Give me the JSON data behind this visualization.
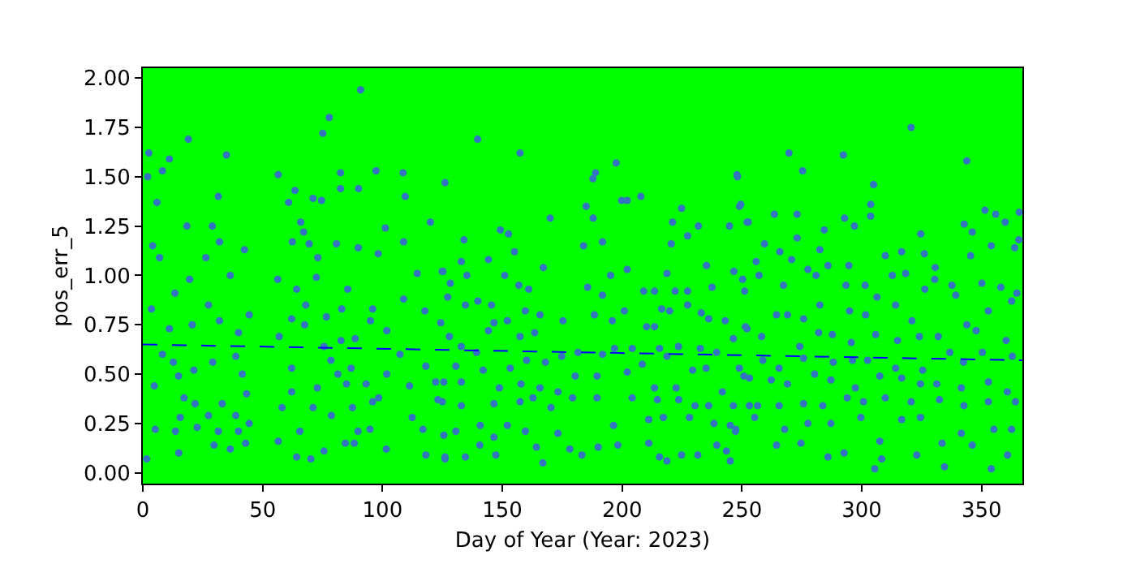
{
  "chart_data": {
    "type": "scatter",
    "xlabel": "Day of Year (Year: 2023)",
    "ylabel": "pos_err_5",
    "xlim": [
      0,
      367
    ],
    "ylim": [
      -0.055,
      2.05
    ],
    "xticks": [
      0,
      50,
      100,
      150,
      200,
      250,
      300,
      350
    ],
    "yticks": [
      {
        "value": 0,
        "label": "0.00"
      },
      {
        "value": 0.25,
        "label": "0.25"
      },
      {
        "value": 0.5,
        "label": "0.50"
      },
      {
        "value": 0.75,
        "label": "0.75"
      },
      {
        "value": 1,
        "label": "1.00"
      },
      {
        "value": 1.25,
        "label": "1.25"
      },
      {
        "value": 1.5,
        "label": "1.50"
      },
      {
        "value": 1.75,
        "label": "1.75"
      },
      {
        "value": 2,
        "label": "2.00"
      }
    ],
    "grid": false,
    "marker": "circle",
    "series": [
      {
        "color": "#3274c0",
        "x": [
          2.5,
          2.0,
          8.2,
          11.1,
          19.0,
          34.9,
          31.5,
          5.9,
          18.4,
          29,
          32,
          42.4,
          4.1,
          7,
          26.3,
          36.5,
          19.5,
          3.6,
          13.4,
          27.4,
          44.4,
          20.6,
          11.1,
          39.9,
          32,
          8.2,
          12.7,
          4.8,
          14.9,
          21.3,
          29.2,
          38.8,
          41.5,
          17.2,
          21.8,
          33.1,
          43.3,
          15.6,
          27.4,
          38.8,
          44.4,
          5.2,
          13.6,
          22.7,
          31.5,
          15,
          29.7,
          36.5,
          1.6,
          42.9,
          39.9,
          56.5,
          75.1,
          77.8,
          90.9,
          63.5,
          60.8,
          71,
          74.6,
          82.5,
          82.5,
          90,
          97.3,
          65.9,
          67.1,
          69.4,
          62.4,
          80.8,
          89.9,
          73,
          56.3,
          64.2,
          72.4,
          85.5,
          98.2,
          101.2,
          68,
          76.6,
          83,
          95.9,
          56.9,
          62.1,
          67.5,
          75.6,
          82.7,
          88.6,
          95,
          101.8,
          62.1,
          72.8,
          78.5,
          81.4,
          86.9,
          85,
          93.2,
          98.4,
          101.8,
          62.1,
          58.1,
          71,
          78.7,
          87.5,
          95.9,
          65.5,
          56.5,
          70.1,
          64.2,
          75.6,
          84.5,
          88.2,
          89.8,
          101.6,
          94.8,
          108.6,
          109.5,
          120,
          108.8,
          114.5,
          108.8,
          117.7,
          124.9,
          107.3,
          118.1,
          111.3,
          122.2,
          112.4,
          116.9,
          118.1,
          126.1,
          123.1,
          139.7,
          157.4,
          126.1,
          149.2,
          152.6,
          134,
          132.9,
          144.2,
          125.2,
          135.2,
          128.3,
          127.2,
          134.6,
          139.8,
          145.5,
          151,
          156.9,
          161,
          167.1,
          170,
          155.1,
          124.3,
          144.2,
          146.5,
          152.1,
          159.6,
          165.7,
          157.4,
          163.5,
          175.3,
          127.9,
          132.9,
          139.3,
          130.6,
          142,
          153.3,
          160.1,
          168,
          174.8,
          181.6,
          125.6,
          132.9,
          148.8,
          157.8,
          165.7,
          173.2,
          180.4,
          125,
          132.9,
          146.5,
          157.4,
          162.8,
          170.3,
          179.3,
          125.6,
          130.6,
          140.8,
          146.5,
          152.1,
          159.6,
          164.2,
          166.9,
          173.2,
          178.2,
          183.2,
          126.1,
          134.6,
          140.6,
          147.3,
          183.9,
          185.0,
          187.8,
          188.9,
          187.9,
          197.5,
          191.8,
          199.8,
          202.1,
          207.8,
          195.2,
          202.1,
          191.8,
          185.6,
          200.9,
          195.9,
          188.4,
          209,
          213.5,
          218.7,
          221,
          224.8,
          220.5,
          227.3,
          231.8,
          235.2,
          222.1,
          227.3,
          216.5,
          219.8,
          210.2,
          213.5,
          227.3,
          233,
          237.5,
          244.8,
          247.9,
          249.5,
          252.1,
          246.6,
          251.1,
          236.1,
          243,
          246.4,
          252.1,
          191.8,
          196.8,
          204.2,
          215.6,
          223.5,
          232.6,
          239.4,
          208.4,
          218.7,
          229.4,
          235,
          250.8,
          189.5,
          202.1,
          213.5,
          222.5,
          241.8,
          189.5,
          204.2,
          214.7,
          223.6,
          230.4,
          236.1,
          246.4,
          253.1,
          196.4,
          211.1,
          217.2,
          228.1,
          238.3,
          245.1,
          190,
          198.2,
          211.1,
          215.6,
          218.7,
          224.8,
          231.6,
          239.5,
          243.5,
          245.1,
          247.3,
          269.6,
          275.3,
          292.3,
          320.6,
          343.8,
          248.1,
          249,
          252.6,
          263.5,
          273,
          273,
          284.3,
          292.8,
          296.9,
          303.7,
          303.7,
          304.9,
          324.6,
          342.7,
          346.1,
          351.4,
          355.9,
          359.8,
          365.7,
          365.5,
          259.4,
          265.8,
          270.7,
          282.5,
          285.9,
          294.6,
          309.8,
          316.6,
          326.1,
          330.6,
          345.4,
          354,
          363.8,
          255.9,
          250.3,
          257.1,
          267.3,
          277.5,
          280.9,
          293.4,
          301.4,
          306.3,
          312.7,
          318.3,
          326.3,
          330.4,
          337.6,
          350.1,
          358,
          364.7,
          264.4,
          269,
          282.5,
          275.7,
          294.9,
          301.6,
          314.1,
          320.9,
          339.2,
          343.8,
          352.8,
          362.5,
          251.4,
          258.2,
          274.1,
          282,
          287.7,
          295.6,
          305.8,
          314.9,
          324,
          331.9,
          347.7,
          360.2,
          248.9,
          258.7,
          265.5,
          275.7,
          288.1,
          296.1,
          302.4,
          314.1,
          325.4,
          336.7,
          342.4,
          350.3,
          362.8,
          253.1,
          262.2,
          269,
          280.3,
          287.1,
          297.3,
          307.5,
          316.6,
          324.5,
          331.3,
          341.5,
          352.8,
          360.7,
          256.5,
          265.5,
          275.7,
          283.7,
          293.9,
          300.7,
          309.8,
          320.6,
          332.4,
          342.6,
          352.8,
          364.1,
          247.4,
          255.3,
          267.8,
          277.5,
          287.1,
          299.6,
          307.5,
          316.6,
          324.5,
          333.5,
          341.5,
          355.1,
          362.5,
          264.4,
          274.6,
          285.9,
          292.6,
          305.4,
          308.3,
          322.9,
          334.5,
          346.1,
          354,
          360.8
        ],
        "values": [
          1.62,
          1.5,
          1.53,
          1.59,
          1.69,
          1.61,
          1.4,
          1.37,
          1.25,
          1.25,
          1.17,
          1.13,
          1.15,
          1.09,
          1.09,
          1.0,
          0.98,
          0.83,
          0.91,
          0.85,
          0.8,
          0.75,
          0.73,
          0.71,
          0.77,
          0.6,
          0.56,
          0.44,
          0.49,
          0.52,
          0.56,
          0.59,
          0.5,
          0.38,
          0.35,
          0.35,
          0.4,
          0.28,
          0.29,
          0.29,
          0.25,
          0.22,
          0.21,
          0.23,
          0.21,
          0.1,
          0.14,
          0.12,
          0.07,
          0.15,
          0.21,
          1.51,
          1.72,
          1.8,
          1.94,
          1.43,
          1.37,
          1.39,
          1.38,
          1.52,
          1.44,
          1.44,
          1.53,
          1.27,
          1.22,
          1.16,
          1.17,
          1.16,
          1.14,
          1.09,
          0.98,
          0.93,
          0.99,
          0.93,
          1.11,
          1.24,
          0.85,
          0.79,
          0.83,
          0.83,
          0.69,
          0.78,
          0.75,
          0.64,
          0.67,
          0.68,
          0.77,
          0.72,
          0.53,
          0.43,
          0.57,
          0.5,
          0.53,
          0.45,
          0.45,
          0.38,
          0.5,
          0.41,
          0.33,
          0.33,
          0.29,
          0.33,
          0.36,
          0.21,
          0.16,
          0.07,
          0.08,
          0.11,
          0.15,
          0.15,
          0.21,
          0.12,
          0.22,
          1.52,
          1.4,
          1.27,
          1.17,
          1.01,
          0.88,
          0.82,
          1.02,
          0.6,
          0.54,
          0.44,
          0.46,
          0.28,
          0.22,
          0.09,
          0.07,
          0.37,
          1.69,
          1.62,
          1.47,
          1.23,
          1.21,
          1.18,
          1.07,
          1.08,
          1.02,
          1.0,
          0.96,
          0.89,
          0.85,
          0.87,
          0.85,
          1.0,
          0.95,
          0.93,
          1.04,
          1.29,
          1.12,
          0.76,
          0.72,
          0.76,
          0.77,
          0.82,
          0.8,
          0.69,
          0.71,
          0.77,
          0.69,
          0.64,
          0.61,
          0.54,
          0.52,
          0.53,
          0.57,
          0.56,
          0.59,
          0.61,
          0.46,
          0.46,
          0.43,
          0.45,
          0.43,
          0.41,
          0.49,
          0.36,
          0.34,
          0.35,
          0.36,
          0.38,
          0.33,
          0.38,
          0.19,
          0.21,
          0.24,
          0.18,
          0.24,
          0.21,
          0.13,
          0.05,
          0.2,
          0.12,
          0.09,
          0.08,
          0.08,
          0.14,
          0.09,
          1.15,
          1.35,
          1.49,
          1.52,
          1.29,
          1.57,
          1.17,
          1.38,
          1.38,
          1.4,
          1.0,
          1.03,
          0.9,
          0.94,
          0.82,
          0.77,
          0.8,
          0.92,
          0.92,
          1.01,
          1.27,
          1.34,
          1.16,
          1.2,
          1.25,
          1.05,
          0.92,
          0.92,
          0.83,
          0.82,
          0.74,
          0.74,
          0.85,
          0.81,
          0.94,
          1.25,
          1.51,
          1.36,
          1.27,
          1.02,
          0.92,
          0.78,
          0.77,
          0.68,
          0.73,
          0.6,
          0.63,
          0.63,
          0.63,
          0.64,
          0.63,
          0.61,
          0.55,
          0.59,
          0.52,
          0.53,
          0.49,
          0.49,
          0.51,
          0.43,
          0.43,
          0.41,
          0.38,
          0.38,
          0.37,
          0.37,
          0.34,
          0.34,
          0.34,
          0.34,
          0.24,
          0.27,
          0.28,
          0.28,
          0.25,
          0.24,
          0.13,
          0.14,
          0.15,
          0.08,
          0.06,
          0.09,
          0.09,
          0.14,
          0.11,
          0.06,
          0.21,
          1.62,
          1.53,
          1.61,
          1.75,
          1.58,
          1.5,
          1.35,
          1.27,
          1.31,
          1.31,
          1.19,
          1.23,
          1.29,
          1.25,
          1.3,
          1.36,
          1.46,
          1.21,
          1.26,
          1.22,
          1.33,
          1.31,
          1.27,
          1.32,
          1.18,
          1.16,
          1.12,
          1.08,
          1.13,
          1.05,
          1.05,
          1.1,
          1.12,
          1.11,
          1.04,
          1.1,
          1.15,
          1.14,
          1.07,
          0.98,
          1.0,
          0.95,
          1.03,
          1.0,
          0.95,
          0.95,
          0.89,
          1.0,
          1.01,
          0.93,
          0.98,
          0.95,
          0.96,
          0.94,
          0.91,
          0.8,
          0.8,
          0.85,
          0.78,
          0.82,
          0.8,
          0.85,
          0.77,
          0.9,
          0.75,
          0.82,
          0.87,
          0.74,
          0.69,
          0.64,
          0.71,
          0.7,
          0.66,
          0.7,
          0.67,
          0.69,
          0.69,
          0.72,
          0.67,
          0.53,
          0.57,
          0.53,
          0.58,
          0.56,
          0.57,
          0.57,
          0.53,
          0.52,
          0.61,
          0.56,
          0.61,
          0.59,
          0.48,
          0.47,
          0.45,
          0.5,
          0.47,
          0.43,
          0.49,
          0.48,
          0.45,
          0.45,
          0.43,
          0.46,
          0.41,
          0.34,
          0.34,
          0.35,
          0.34,
          0.38,
          0.36,
          0.38,
          0.36,
          0.37,
          0.34,
          0.36,
          0.36,
          0.22,
          0.28,
          0.22,
          0.25,
          0.25,
          0.28,
          0.16,
          0.27,
          0.28,
          0.15,
          0.2,
          0.22,
          0.22,
          0.14,
          0.15,
          0.08,
          0.1,
          0.02,
          0.07,
          0.09,
          0.03,
          0.14,
          0.02,
          0.09
        ]
      },
      {
        "type": "line",
        "color": "#0000ff",
        "line_style": "dashed",
        "marker": "none",
        "x": [
          0,
          367
        ],
        "values": [
          0.65,
          0.57
        ]
      }
    ]
  }
}
